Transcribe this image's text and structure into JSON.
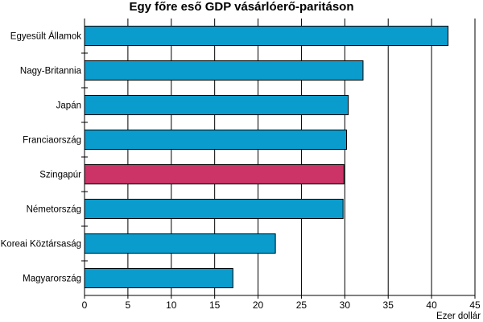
{
  "chart_data": {
    "type": "bar",
    "orientation": "horizontal",
    "title": "Egy főre eső GDP vásárlóerő-paritáson",
    "xlabel": "Ezer dollár",
    "ylabel": "",
    "categories": [
      "Egyesült Államok",
      "Nagy-Britannia",
      "Japán",
      "Franciaország",
      "Szingapúr",
      "Németország",
      "Koreai Köztársaság",
      "Magyarország"
    ],
    "values": [
      41.9,
      32.1,
      30.4,
      30.2,
      29.9,
      29.8,
      22.0,
      17.1
    ],
    "highlight": "Szingapúr",
    "xlim": [
      0,
      45
    ],
    "xticks": [
      0,
      5,
      10,
      15,
      20,
      25,
      30,
      35,
      40,
      45
    ],
    "grid": "vertical",
    "colors": {
      "bar": "#0a9ccd",
      "highlight": "#cc3366",
      "grid": "#000000",
      "edge": "#000000"
    }
  }
}
